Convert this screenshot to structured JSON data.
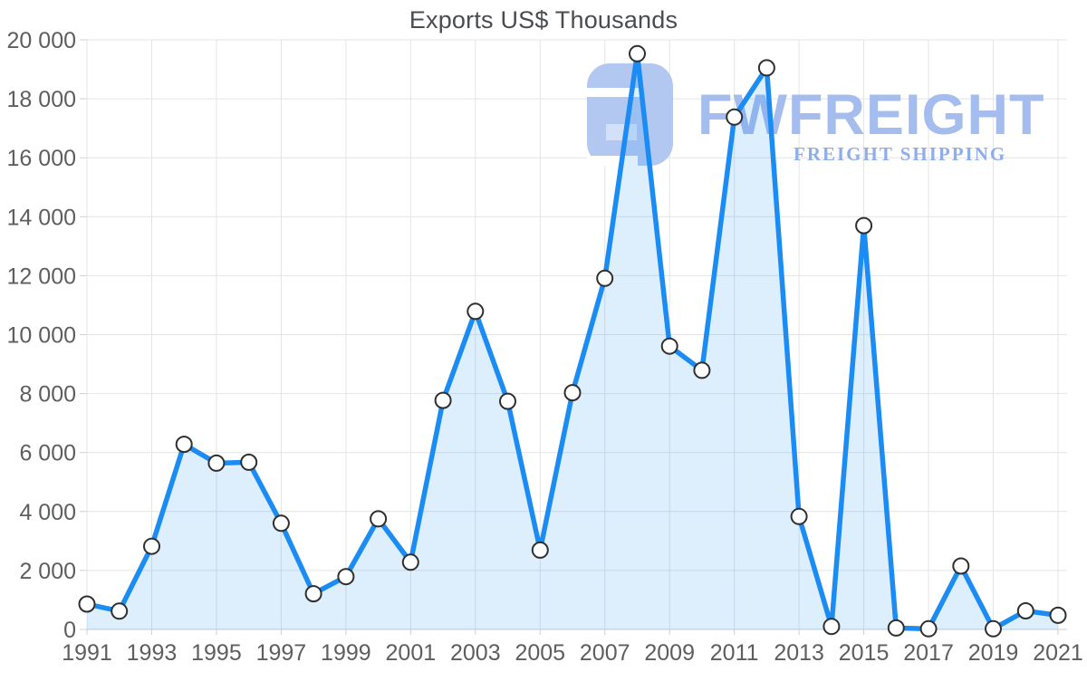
{
  "chart_data": {
    "type": "area",
    "title": "Exports US$ Thousands",
    "x": [
      1991,
      1992,
      1993,
      1994,
      1995,
      1996,
      1997,
      1998,
      1999,
      2000,
      2001,
      2002,
      2003,
      2004,
      2005,
      2006,
      2007,
      2008,
      2009,
      2010,
      2011,
      2012,
      2013,
      2014,
      2015,
      2016,
      2017,
      2018,
      2019,
      2020,
      2021
    ],
    "values": [
      860,
      620,
      2820,
      6280,
      5640,
      5670,
      3600,
      1210,
      1790,
      3750,
      2280,
      7770,
      10790,
      7740,
      2690,
      8030,
      11910,
      19530,
      9610,
      8790,
      17380,
      19050,
      3830,
      100,
      13700,
      50,
      20,
      2150,
      20,
      630,
      480
    ],
    "ylim": [
      0,
      20000
    ],
    "ytick_values": [
      0,
      2000,
      4000,
      6000,
      8000,
      10000,
      12000,
      14000,
      16000,
      18000,
      20000
    ],
    "ytick_labels": [
      "0",
      "2 000",
      "4 000",
      "6 000",
      "8 000",
      "10 000",
      "12 000",
      "14 000",
      "16 000",
      "18 000",
      "20 000"
    ],
    "xtick_labels": [
      "1991",
      "1993",
      "1995",
      "1997",
      "1999",
      "2001",
      "2003",
      "2005",
      "2007",
      "2009",
      "2011",
      "2013",
      "2015",
      "2017",
      "2019",
      "2021"
    ],
    "grid": true,
    "legend": "none",
    "colors": {
      "line": "#1b8cf4",
      "area_fill": "rgba(27,140,244,0.15)",
      "marker_fill": "#ffffff",
      "marker_stroke": "#2f2f2f",
      "grid": "#e4e4e4",
      "axis_line": "#c9ced4",
      "tick": "#ccd0d4",
      "label": "#5c5e60",
      "title": "#4a4c4f"
    }
  },
  "watermark": {
    "brand": "FWFREIGHT",
    "subtitle": "FREIGHT SHIPPING",
    "brand_color": "#a5bcee",
    "subtitle_color": "#8fade9",
    "logo_base_color": "#b3c8f1",
    "logo_inner_color": "#d3e0f8"
  }
}
